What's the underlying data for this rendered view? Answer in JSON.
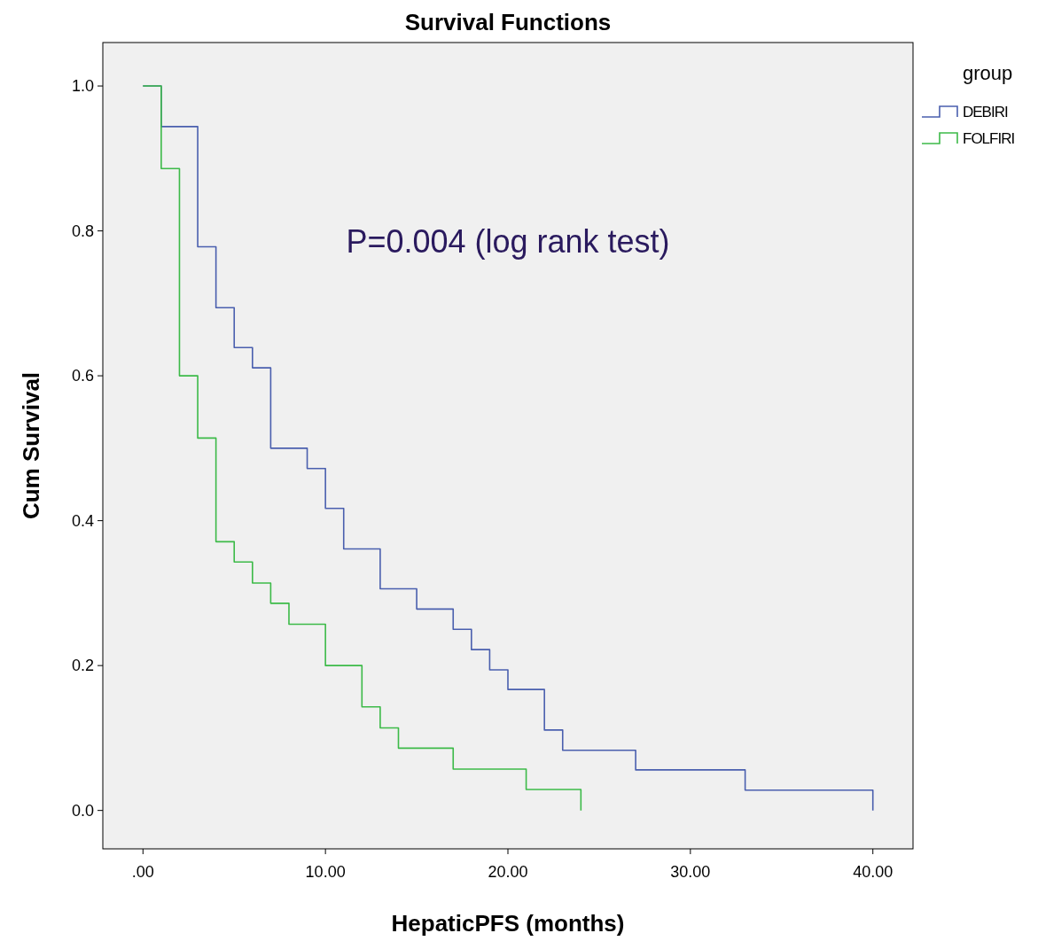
{
  "chart_data": {
    "type": "step",
    "title": "Survival Functions",
    "xlabel": "HepaticPFS (months)",
    "ylabel": "Cum Survival",
    "legend_title": "group",
    "legend": "right",
    "grid": false,
    "line_style": "solid",
    "xlim": [
      -2.2,
      42.2
    ],
    "ylim": [
      -0.053,
      1.06
    ],
    "xticks": [
      {
        "value": 0,
        "label": ".00"
      },
      {
        "value": 10,
        "label": "10.00"
      },
      {
        "value": 20,
        "label": "20.00"
      },
      {
        "value": 30,
        "label": "30.00"
      },
      {
        "value": 40,
        "label": "40.00"
      }
    ],
    "yticks": [
      {
        "value": 0,
        "label": "0.0"
      },
      {
        "value": 0.2,
        "label": "0.2"
      },
      {
        "value": 0.4,
        "label": "0.4"
      },
      {
        "value": 0.6,
        "label": "0.6"
      },
      {
        "value": 0.8,
        "label": "0.8"
      },
      {
        "value": 1,
        "label": "1.0"
      }
    ],
    "annotations": [
      "P=0.004 (log rank test)"
    ],
    "series": [
      {
        "name": "DEBIRI",
        "color": "#4a5fae",
        "x": [
          0,
          1,
          3,
          4,
          5,
          6,
          7,
          9,
          10,
          11,
          13,
          15,
          17,
          18,
          19,
          20,
          22,
          23,
          27,
          33,
          40
        ],
        "values": [
          1,
          0.944,
          0.778,
          0.694,
          0.639,
          0.611,
          0.5,
          0.472,
          0.417,
          0.361,
          0.306,
          0.278,
          0.25,
          0.222,
          0.194,
          0.167,
          0.111,
          0.083,
          0.056,
          0.028,
          0
        ]
      },
      {
        "name": "FOLFIRI",
        "color": "#3cba48",
        "x": [
          0,
          1,
          2,
          3,
          4,
          5,
          6,
          7,
          8,
          10,
          12,
          13,
          14,
          17,
          21,
          24
        ],
        "values": [
          1,
          0.886,
          0.6,
          0.514,
          0.371,
          0.343,
          0.314,
          0.286,
          0.257,
          0.2,
          0.143,
          0.114,
          0.086,
          0.057,
          0.029,
          0
        ]
      }
    ]
  }
}
